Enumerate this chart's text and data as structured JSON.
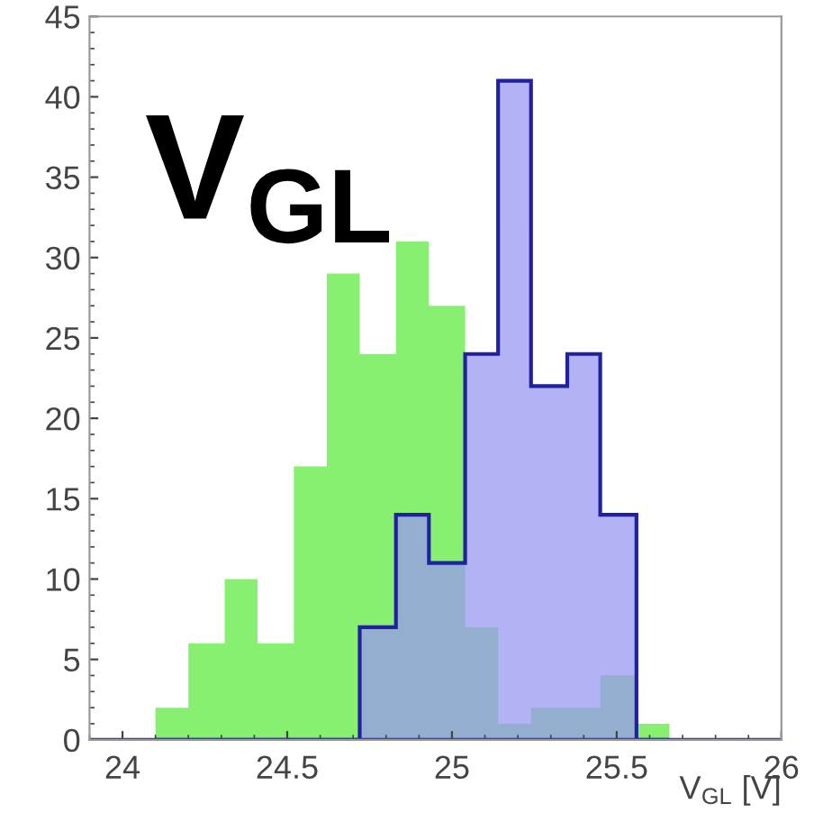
{
  "chart_data": {
    "type": "histogram",
    "bins": [
      24.1,
      24.2,
      24.31,
      24.41,
      24.52,
      24.62,
      24.72,
      24.83,
      24.93,
      25.04,
      25.14,
      25.24,
      25.35,
      25.45,
      25.56,
      25.66
    ],
    "series": [
      {
        "color": "#88f070",
        "values": [
          2,
          6,
          10,
          6,
          17,
          29,
          24,
          31,
          27,
          7,
          1,
          2,
          2,
          4,
          1
        ]
      },
      {
        "color": "#9898f0",
        "values": [
          0,
          0,
          0,
          0,
          0,
          0,
          7,
          14,
          11,
          24,
          41,
          22,
          24,
          14,
          0
        ]
      }
    ],
    "xlabel": "V$_{GL}$ [V]",
    "annotations": [
      "V$_{GL}$"
    ],
    "xlim": [
      23.9,
      26
    ],
    "xticks": [
      24,
      24.5,
      25,
      25.5,
      26
    ],
    "ylim": [
      0,
      45
    ],
    "yticks": [
      0,
      5,
      10,
      15,
      20,
      25,
      30,
      35,
      40,
      45
    ],
    "grid": false
  }
}
